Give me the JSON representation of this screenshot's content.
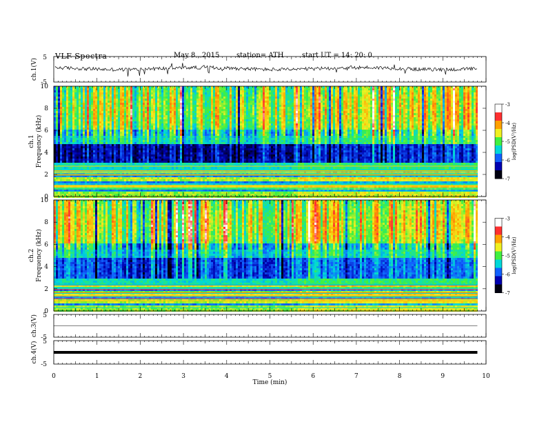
{
  "header": {
    "title": "VLF  Spectra",
    "date": "May 8  , 2015",
    "station": "station= ATH",
    "start": "start  UT  =   14: 20: 0"
  },
  "chart_data": [
    {
      "type": "line",
      "panel": "ch1-waveform",
      "ylabel": "ch.1(V)",
      "yticks": [
        "5",
        "-5"
      ],
      "ylim": [
        -5,
        5
      ],
      "baseline": 0,
      "xlim": [
        0,
        10
      ]
    },
    {
      "type": "heatmap",
      "panel": "ch1-spectrogram",
      "ylabel_top": "ch.1",
      "ylabel": "Frequency  (kHz)",
      "ylim": [
        0,
        10
      ],
      "yticks": [
        "0",
        "2",
        "4",
        "6",
        "8",
        "10"
      ],
      "xlim": [
        0,
        9.8
      ],
      "shift_time_min": 5.6,
      "colorbar": {
        "label": "log(PSD(V²/Hz)",
        "range": [
          -7,
          -3
        ],
        "ticks": [
          "-3",
          "-4",
          "-5",
          "-6",
          "-7"
        ],
        "colors": [
          "#ffffff",
          "#ff3030",
          "#ffa000",
          "#f0f020",
          "#40f040",
          "#00d8d8",
          "#1060ff",
          "#0000b0",
          "#000010"
        ]
      }
    },
    {
      "type": "heatmap",
      "panel": "ch2-spectrogram",
      "ylabel_top": "ch.2",
      "ylabel": "Frequency  (kHz)",
      "ylim": [
        0,
        10
      ],
      "yticks": [
        "0",
        "2",
        "4",
        "6",
        "8",
        "10"
      ],
      "xlim": [
        0,
        9.8
      ],
      "shift_time_min": 5.6,
      "colorbar": {
        "label": "log(PSD(V²/Hz)",
        "range": [
          -7,
          -3
        ],
        "ticks": [
          "-3",
          "-4",
          "-5",
          "-6",
          "-7"
        ],
        "colors": [
          "#ffffff",
          "#ff3030",
          "#ffa000",
          "#f0f020",
          "#40f040",
          "#00d8d8",
          "#1060ff",
          "#0000b0",
          "#000010"
        ]
      }
    },
    {
      "type": "line",
      "panel": "ch3-waveform",
      "ylabel": "ch.3(V)",
      "yticks": [
        "5",
        "-5"
      ],
      "ylim": [
        -5,
        5
      ],
      "baseline": 0,
      "xlim": [
        0,
        9.8
      ]
    },
    {
      "type": "line",
      "panel": "ch4-waveform",
      "ylabel": "ch.4(V)",
      "yticks": [
        "5",
        "-5"
      ],
      "ylim": [
        -5,
        5
      ],
      "baseline": 0,
      "xlim": [
        0,
        9.8
      ]
    }
  ],
  "xaxis": {
    "xlabel": "Time  (min)",
    "xlim": [
      0,
      10
    ],
    "ticks": [
      "0",
      "1",
      "2",
      "3",
      "4",
      "5",
      "6",
      "7",
      "8",
      "9",
      "10"
    ]
  }
}
